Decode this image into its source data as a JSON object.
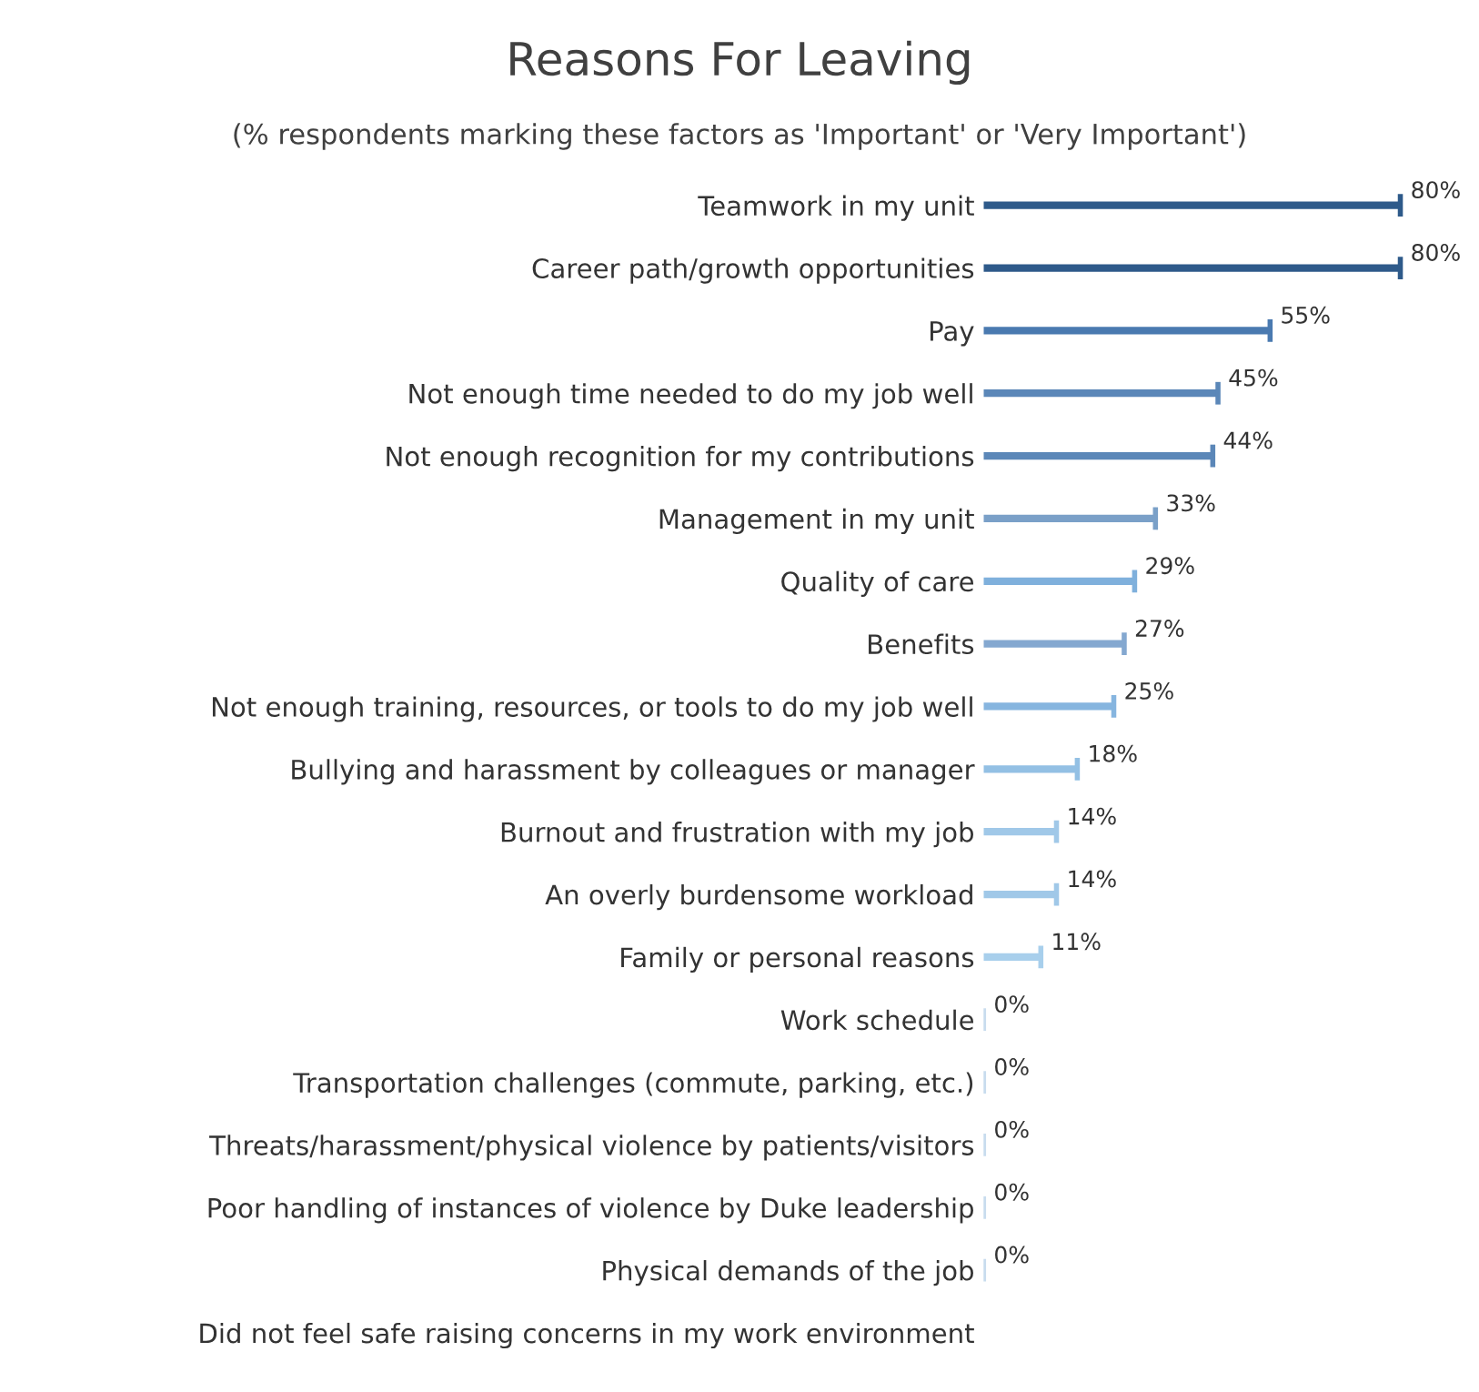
{
  "chart_data": {
    "type": "bar",
    "orientation": "horizontal",
    "title": "Reasons For Leaving",
    "subtitle": "(% respondents marking these factors as 'Important' or 'Very Important')",
    "categories": [
      "Teamwork in my unit",
      "Career path/growth opportunities",
      "Pay",
      "Not enough time needed to do my job well",
      "Not enough recognition for my contributions",
      "Management in my unit",
      "Quality of care",
      "Benefits",
      "Not enough training, resources, or tools to do my job well",
      "Bullying and harassment by colleagues or manager",
      "Burnout and frustration with my job",
      "An overly burdensome workload",
      "Family or personal reasons",
      "Work schedule",
      "Transportation challenges (commute, parking, etc.)",
      "Threats/harassment/physical violence by patients/visitors",
      "Poor handling of instances of violence by Duke leadership",
      "Physical demands of the job",
      "Did not feel safe raising concerns in my work environment"
    ],
    "values": [
      80,
      80,
      55,
      45,
      44,
      33,
      29,
      27,
      25,
      18,
      14,
      14,
      11,
      0,
      0,
      0,
      0,
      0,
      null
    ],
    "value_labels": [
      "80%",
      "80%",
      "55%",
      "45%",
      "44%",
      "33%",
      "29%",
      "27%",
      "25%",
      "18%",
      "14%",
      "14%",
      "11%",
      "0%",
      "0%",
      "0%",
      "0%",
      "0%",
      null
    ],
    "colors": [
      "#2e5a8a",
      "#2e5a8a",
      "#4a7ab0",
      "#5b87b8",
      "#5b87b8",
      "#7aa0c8",
      "#7fb0dc",
      "#84a8d0",
      "#86b5df",
      "#93c0e4",
      "#a0c8e8",
      "#a0c8e8",
      "#a8cfec",
      "#c8dcee",
      "#c8dcee",
      "#c8dcee",
      "#c8dcee",
      "#c8dcee",
      "#c8dcee"
    ],
    "grid": false
  }
}
